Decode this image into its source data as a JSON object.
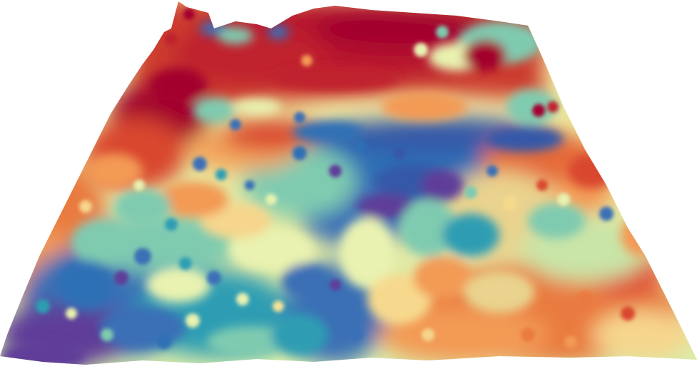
{
  "scene": {
    "type": "3d-terrain-surface",
    "background": "#ffffff",
    "colormap": "spectral",
    "colormap_stops": [
      "#5e3c99",
      "#3b6fb6",
      "#2d9db3",
      "#7fcbb0",
      "#e9f2b0",
      "#f7d98d",
      "#f39a55",
      "#d9472f",
      "#a3002d"
    ],
    "regions": [
      {
        "name": "far-ridge-peaks",
        "level": 0.92
      },
      {
        "name": "left-high-plateau",
        "level": 0.88
      },
      {
        "name": "right-far-peaks",
        "level": 0.8
      },
      {
        "name": "central-blue-valley",
        "level": 0.18
      },
      {
        "name": "left-near-basin",
        "level": 0.08
      },
      {
        "name": "right-near-hills",
        "level": 0.7
      },
      {
        "name": "right-mid-yellow-plain",
        "level": 0.5
      }
    ]
  }
}
